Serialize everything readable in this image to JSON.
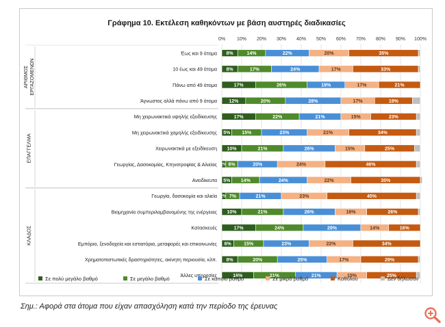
{
  "chart_data": {
    "type": "bar",
    "stacked": "percent",
    "orientation": "horizontal",
    "title": "Γράφημα 10. Εκτέλεση καθηκόντων με βάση αυστηρές διαδικασίες",
    "x_ticks": [
      "0%",
      "10%",
      "20%",
      "30%",
      "40%",
      "50%",
      "60%",
      "70%",
      "80%",
      "90%",
      "100%"
    ],
    "xlim": [
      0,
      100
    ],
    "series": [
      {
        "name": "Σε πολύ μεγάλο βαθμό",
        "color": "#2e5e1e"
      },
      {
        "name": "Σε μεγάλο βαθμό",
        "color": "#4f8a2c"
      },
      {
        "name": "Σε κάποιο βαθμό",
        "color": "#4a8fd6"
      },
      {
        "name": "Σε μικρό βαθμό",
        "color": "#f4b183"
      },
      {
        "name": "Καθόλου",
        "color": "#c55a11"
      },
      {
        "name": "Δεν δήλωσαν",
        "color": "#bfbfbf"
      }
    ],
    "groups": [
      {
        "label": "ΑΡΙΘΜΟΣ ΕΡΓΑΖΟΜΕΝΩΝ",
        "label_lines": [
          "ΑΡΙΘΜΟΣ",
          "ΕΡΓΑΖΟΜΕΝΩΝ"
        ],
        "rows": [
          {
            "label": "Έως και 9 άτομα",
            "values": [
              8,
              14,
              22,
              20,
              35,
              1
            ],
            "labels": [
              "8%",
              "14%",
              "22%",
              "20%",
              "35%",
              ""
            ]
          },
          {
            "label": "10 έως και 49 άτομα",
            "values": [
              8,
              17,
              24,
              17,
              33,
              1
            ],
            "labels": [
              "8%",
              "17%",
              "24%",
              "17%",
              "33%",
              ""
            ]
          },
          {
            "label": "Πάνω από 49 άτομα",
            "values": [
              17,
              26,
              19,
              17,
              21,
              0
            ],
            "labels": [
              "17%",
              "26%",
              "19%",
              "17%",
              "21%",
              ""
            ]
          },
          {
            "label": "Άγνωστος αλλά πάνω από 9 άτομα",
            "values": [
              12,
              20,
              28,
              17,
              19,
              4
            ],
            "labels": [
              "12%",
              "20%",
              "28%",
              "17%",
              "19%",
              ""
            ]
          }
        ]
      },
      {
        "label": "ΕΠΑΓΓΕΛΜΑ",
        "label_lines": [
          "ΕΠΑΓΓΕΛΜΑ"
        ],
        "rows": [
          {
            "label": "Μη χειρωνακτικά υψηλής εξειδίκευσης",
            "values": [
              17,
              22,
              21,
              15,
              23,
              2
            ],
            "labels": [
              "17%",
              "22%",
              "21%",
              "15%",
              "23%",
              ""
            ]
          },
          {
            "label": "Μη χειρωνακτικά χαμηλής εξειδίκευσης",
            "values": [
              5,
              15,
              23,
              21,
              34,
              2
            ],
            "labels": [
              "5%",
              "15%",
              "23%",
              "21%",
              "34%",
              ""
            ]
          },
          {
            "label": "Χειρωνακτικά με εξειδίκευση",
            "values": [
              10,
              21,
              26,
              15,
              25,
              3
            ],
            "labels": [
              "10%",
              "21%",
              "26%",
              "15%",
              "25%",
              ""
            ]
          },
          {
            "label": "Γεωργίας, Δασοκομίας, Κτηνοτροφίας & Αλιείας",
            "values": [
              2,
              6,
              20,
              24,
              46,
              2
            ],
            "labels": [
              "2%",
              "6%",
              "20%",
              "24%",
              "46%",
              ""
            ]
          },
          {
            "label": "Ανειδίκευτα",
            "values": [
              5,
              14,
              24,
              22,
              35,
              1
            ],
            "labels": [
              "5%",
              "14%",
              "24%",
              "22%",
              "35%",
              ""
            ]
          }
        ]
      },
      {
        "label": "ΚΛΑΔΟΣ",
        "label_lines": [
          "ΚΛΑΔΟΣ"
        ],
        "rows": [
          {
            "label": "Γεωργία, δασοκομία και αλιεία",
            "values": [
              2,
              7,
              21,
              23,
              45,
              2
            ],
            "labels": [
              "2%",
              "7%",
              "21%",
              "23%",
              "45%",
              ""
            ]
          },
          {
            "label": "Βιομηχανία συμπεριλαμβανομένης της ενέργειας",
            "values": [
              10,
              21,
              26,
              16,
              26,
              1
            ],
            "labels": [
              "10%",
              "21%",
              "26%",
              "16%",
              "26%",
              ""
            ]
          },
          {
            "label": "Κατασκευές",
            "values": [
              17,
              24,
              29,
              14,
              16,
              0
            ],
            "labels": [
              "17%",
              "24%",
              "29%",
              "14%",
              "16%",
              ""
            ]
          },
          {
            "label": "Εμπόριο, ξενοδοχεία και εστιατόρια, μεταφορές και επικοινωνίες",
            "values": [
              6,
              15,
              23,
              22,
              34,
              0
            ],
            "labels": [
              "6%",
              "15%",
              "23%",
              "22%",
              "34%",
              ""
            ]
          },
          {
            "label": "Χρηματοπιστωτικές δραστηριότητες, ακίνητη περιουσία, κλπ.",
            "values": [
              8,
              20,
              25,
              17,
              29,
              1
            ],
            "labels": [
              "8%",
              "20%",
              "25%",
              "17%",
              "29%",
              ""
            ]
          },
          {
            "label": "Άλλες υπηρεσίες",
            "values": [
              16,
              21,
              21,
              15,
              25,
              2
            ],
            "labels": [
              "16%",
              "21%",
              "21%",
              "15%",
              "25%",
              ""
            ]
          }
        ]
      }
    ]
  },
  "note": "Σημ.: Αφορά στα άτομα που είχαν απασχόληση κατά την περίοδο της έρευνας",
  "zoom_icon_color": "#e8705a"
}
